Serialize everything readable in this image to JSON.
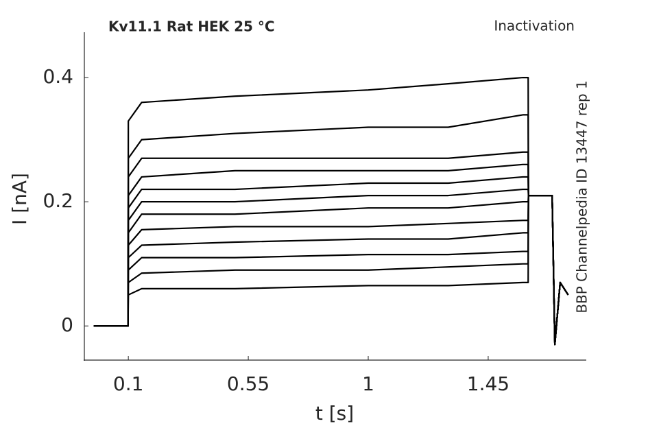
{
  "chart_data": {
    "type": "line",
    "title": "Kv11.1  Rat  HEK  25 °C",
    "annotation": "Inactivation",
    "side_text": "BBP Channelpedia ID 13447 rep 1",
    "xlabel": "t [s]",
    "ylabel": "I [nA]",
    "color": "#000000",
    "xlim": [
      -0.065,
      1.818
    ],
    "ylim": [
      -0.055,
      0.473
    ],
    "xticks": [
      0.1,
      0.55,
      1,
      1.45
    ],
    "yticks": [
      0,
      0.2,
      0.4
    ],
    "x": [
      -0.03,
      0.099,
      0.1,
      0.15,
      0.5,
      1.0,
      1.3,
      1.58,
      1.6,
      1.601,
      1.69,
      1.7,
      1.72,
      1.75
    ],
    "series": [
      {
        "values": [
          0,
          0,
          0.33,
          0.36,
          0.37,
          0.38,
          0.39,
          0.4,
          0.4,
          0.21,
          0.21,
          -0.03,
          0.07,
          0.05
        ]
      },
      {
        "values": [
          0,
          0,
          0.27,
          0.3,
          0.31,
          0.32,
          0.32,
          0.34,
          0.34,
          0.21,
          0.21,
          -0.03,
          0.07,
          0.05
        ]
      },
      {
        "values": [
          0,
          0,
          0.24,
          0.27,
          0.27,
          0.27,
          0.27,
          0.28,
          0.28,
          0.21,
          0.21,
          -0.03,
          0.07,
          0.05
        ]
      },
      {
        "values": [
          0,
          0,
          0.21,
          0.24,
          0.25,
          0.25,
          0.25,
          0.26,
          0.26,
          0.21,
          0.21,
          -0.03,
          0.07,
          0.05
        ]
      },
      {
        "values": [
          0,
          0,
          0.19,
          0.22,
          0.22,
          0.23,
          0.23,
          0.24,
          0.24,
          0.21,
          0.21,
          -0.03,
          0.07,
          0.05
        ]
      },
      {
        "values": [
          0,
          0,
          0.17,
          0.2,
          0.2,
          0.21,
          0.21,
          0.22,
          0.22,
          0.21,
          0.21,
          -0.03,
          0.07,
          0.05
        ]
      },
      {
        "values": [
          0,
          0,
          0.15,
          0.18,
          0.18,
          0.19,
          0.19,
          0.2,
          0.2,
          0.21,
          0.21,
          -0.03,
          0.07,
          0.05
        ]
      },
      {
        "values": [
          0,
          0,
          0.13,
          0.155,
          0.16,
          0.16,
          0.165,
          0.17,
          0.17,
          0.21,
          0.21,
          -0.03,
          0.07,
          0.05
        ]
      },
      {
        "values": [
          0,
          0,
          0.11,
          0.13,
          0.135,
          0.14,
          0.14,
          0.15,
          0.15,
          0.21,
          0.21,
          -0.03,
          0.07,
          0.05
        ]
      },
      {
        "values": [
          0,
          0,
          0.09,
          0.11,
          0.11,
          0.115,
          0.115,
          0.12,
          0.12,
          0.21,
          0.21,
          -0.03,
          0.07,
          0.05
        ]
      },
      {
        "values": [
          0,
          0,
          0.07,
          0.085,
          0.09,
          0.09,
          0.095,
          0.1,
          0.1,
          0.21,
          0.21,
          -0.03,
          0.07,
          0.05
        ]
      },
      {
        "values": [
          0,
          0,
          0.05,
          0.06,
          0.06,
          0.065,
          0.065,
          0.07,
          0.07,
          0.21,
          0.21,
          -0.03,
          0.07,
          0.05
        ]
      }
    ]
  }
}
